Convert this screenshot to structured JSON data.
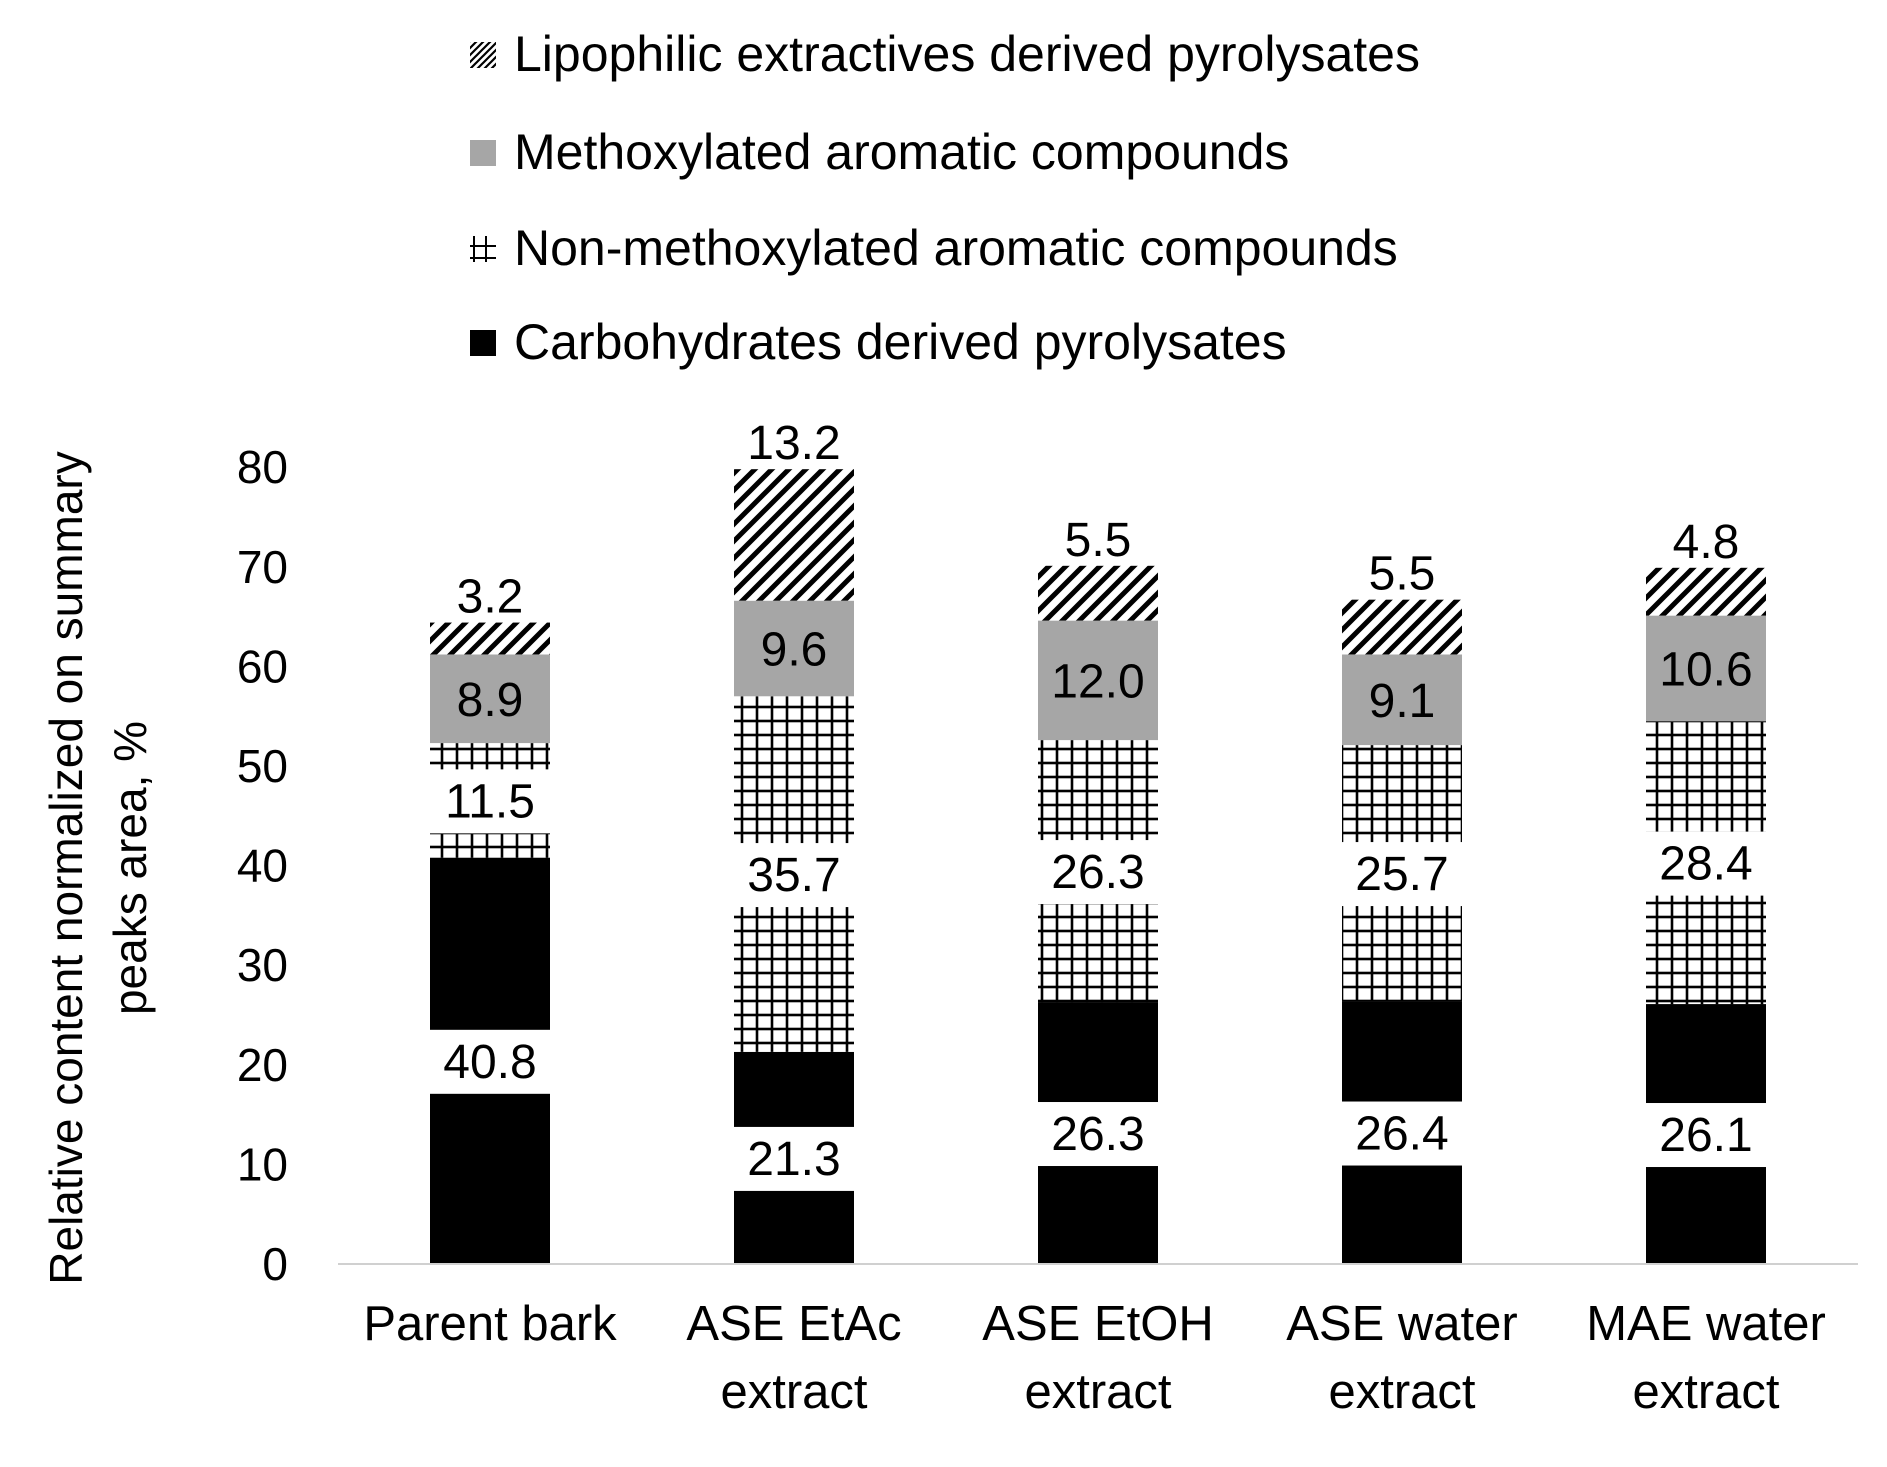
{
  "chart_data": {
    "type": "stacked-bar",
    "title": "",
    "xlabel": "",
    "ylabel_lines": [
      "Relative content normalized on summary",
      "peaks area, %"
    ],
    "ylim": [
      0,
      80
    ],
    "yticks": [
      0,
      10,
      20,
      30,
      40,
      50,
      60,
      70,
      80
    ],
    "grid": false,
    "legend_position": "top",
    "categories": [
      [
        "Parent bark"
      ],
      [
        "ASE EtAc",
        "extract"
      ],
      [
        "ASE EtOH",
        "extract"
      ],
      [
        "ASE water",
        "extract"
      ],
      [
        "MAE water",
        "extract"
      ]
    ],
    "series": [
      {
        "name": "Carbohydrates derived pyrolysates",
        "pattern": "solid-black",
        "values": [
          40.8,
          21.3,
          26.3,
          26.4,
          26.1
        ],
        "labels": [
          "40.8",
          "21.3",
          "26.3",
          "26.4",
          "26.1"
        ]
      },
      {
        "name": "Non-methoxylated aromatic compounds",
        "pattern": "grid",
        "values": [
          11.5,
          35.7,
          26.3,
          25.7,
          28.4
        ],
        "labels": [
          "11.5",
          "35.7",
          "26.3",
          "25.7",
          "28.4"
        ]
      },
      {
        "name": "Methoxylated aromatic compounds",
        "pattern": "solid-gray",
        "values": [
          8.9,
          9.6,
          12.0,
          9.1,
          10.6
        ],
        "labels": [
          "8.9",
          "9.6",
          "12.0",
          "9.1",
          "10.6"
        ]
      },
      {
        "name": "Lipophilic extractives derived pyrolysates",
        "pattern": "diagonal",
        "values": [
          3.2,
          13.2,
          5.5,
          5.5,
          4.8
        ],
        "labels": [
          "3.2",
          "13.2",
          "5.5",
          "5.5",
          "4.8"
        ]
      }
    ],
    "legend_order": [
      3,
      2,
      1,
      0
    ]
  },
  "colors": {
    "black": "#000000",
    "gray": "#a6a6a6",
    "axis": "#d0d0d0",
    "background": "#ffffff"
  }
}
